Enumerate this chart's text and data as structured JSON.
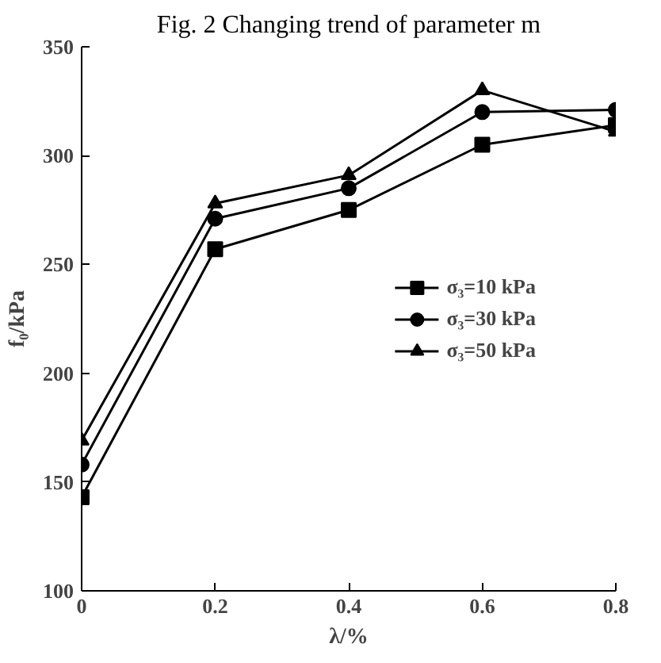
{
  "chart_data": {
    "type": "line",
    "title": "Fig. 2 Changing trend of parameter m",
    "xlabel": "λ/%",
    "ylabel": "f₀/kPa",
    "x": [
      0,
      0.2,
      0.4,
      0.6,
      0.8
    ],
    "series": [
      {
        "name": "σ₃=10 kPa",
        "color": "#000000",
        "marker": "square",
        "values": [
          143,
          257,
          275,
          305,
          314
        ]
      },
      {
        "name": "σ₃=30 kPa",
        "color": "#000000",
        "marker": "circle",
        "values": [
          158,
          271,
          285,
          320,
          321
        ]
      },
      {
        "name": "σ₃=50 kPa",
        "color": "#000000",
        "marker": "triangle",
        "values": [
          169,
          278,
          291,
          330,
          311
        ]
      }
    ],
    "xlim": [
      0,
      0.8
    ],
    "xticks": [
      0,
      0.2,
      0.4,
      0.6,
      0.8
    ],
    "ylim": [
      100,
      350
    ],
    "yticks": [
      100,
      150,
      200,
      250,
      300,
      350
    ],
    "grid": false,
    "legend": "right",
    "line_style": "solid"
  }
}
